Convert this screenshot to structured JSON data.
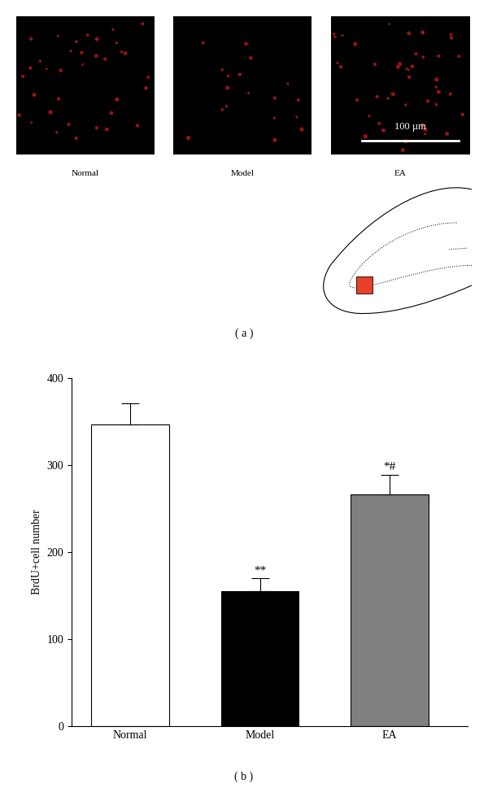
{
  "chart_data": {
    "type": "bar",
    "categories": [
      "Normal",
      "Model",
      "EA"
    ],
    "values": [
      347,
      155,
      266
    ],
    "errors": [
      24,
      15,
      23
    ],
    "annotations": [
      null,
      "**",
      "*#"
    ],
    "colors": [
      "#ffffff",
      "#000000",
      "#808080"
    ],
    "ylabel": "BrdU+cell number",
    "ylim": [
      0,
      400
    ],
    "yticks": [
      0,
      100,
      200,
      300,
      400
    ]
  },
  "figure": {
    "panel_labels": [
      "( a )",
      "( b )"
    ],
    "image_labels": [
      "Normal",
      "Model",
      "EA"
    ],
    "scale_bar": "100 µm"
  }
}
